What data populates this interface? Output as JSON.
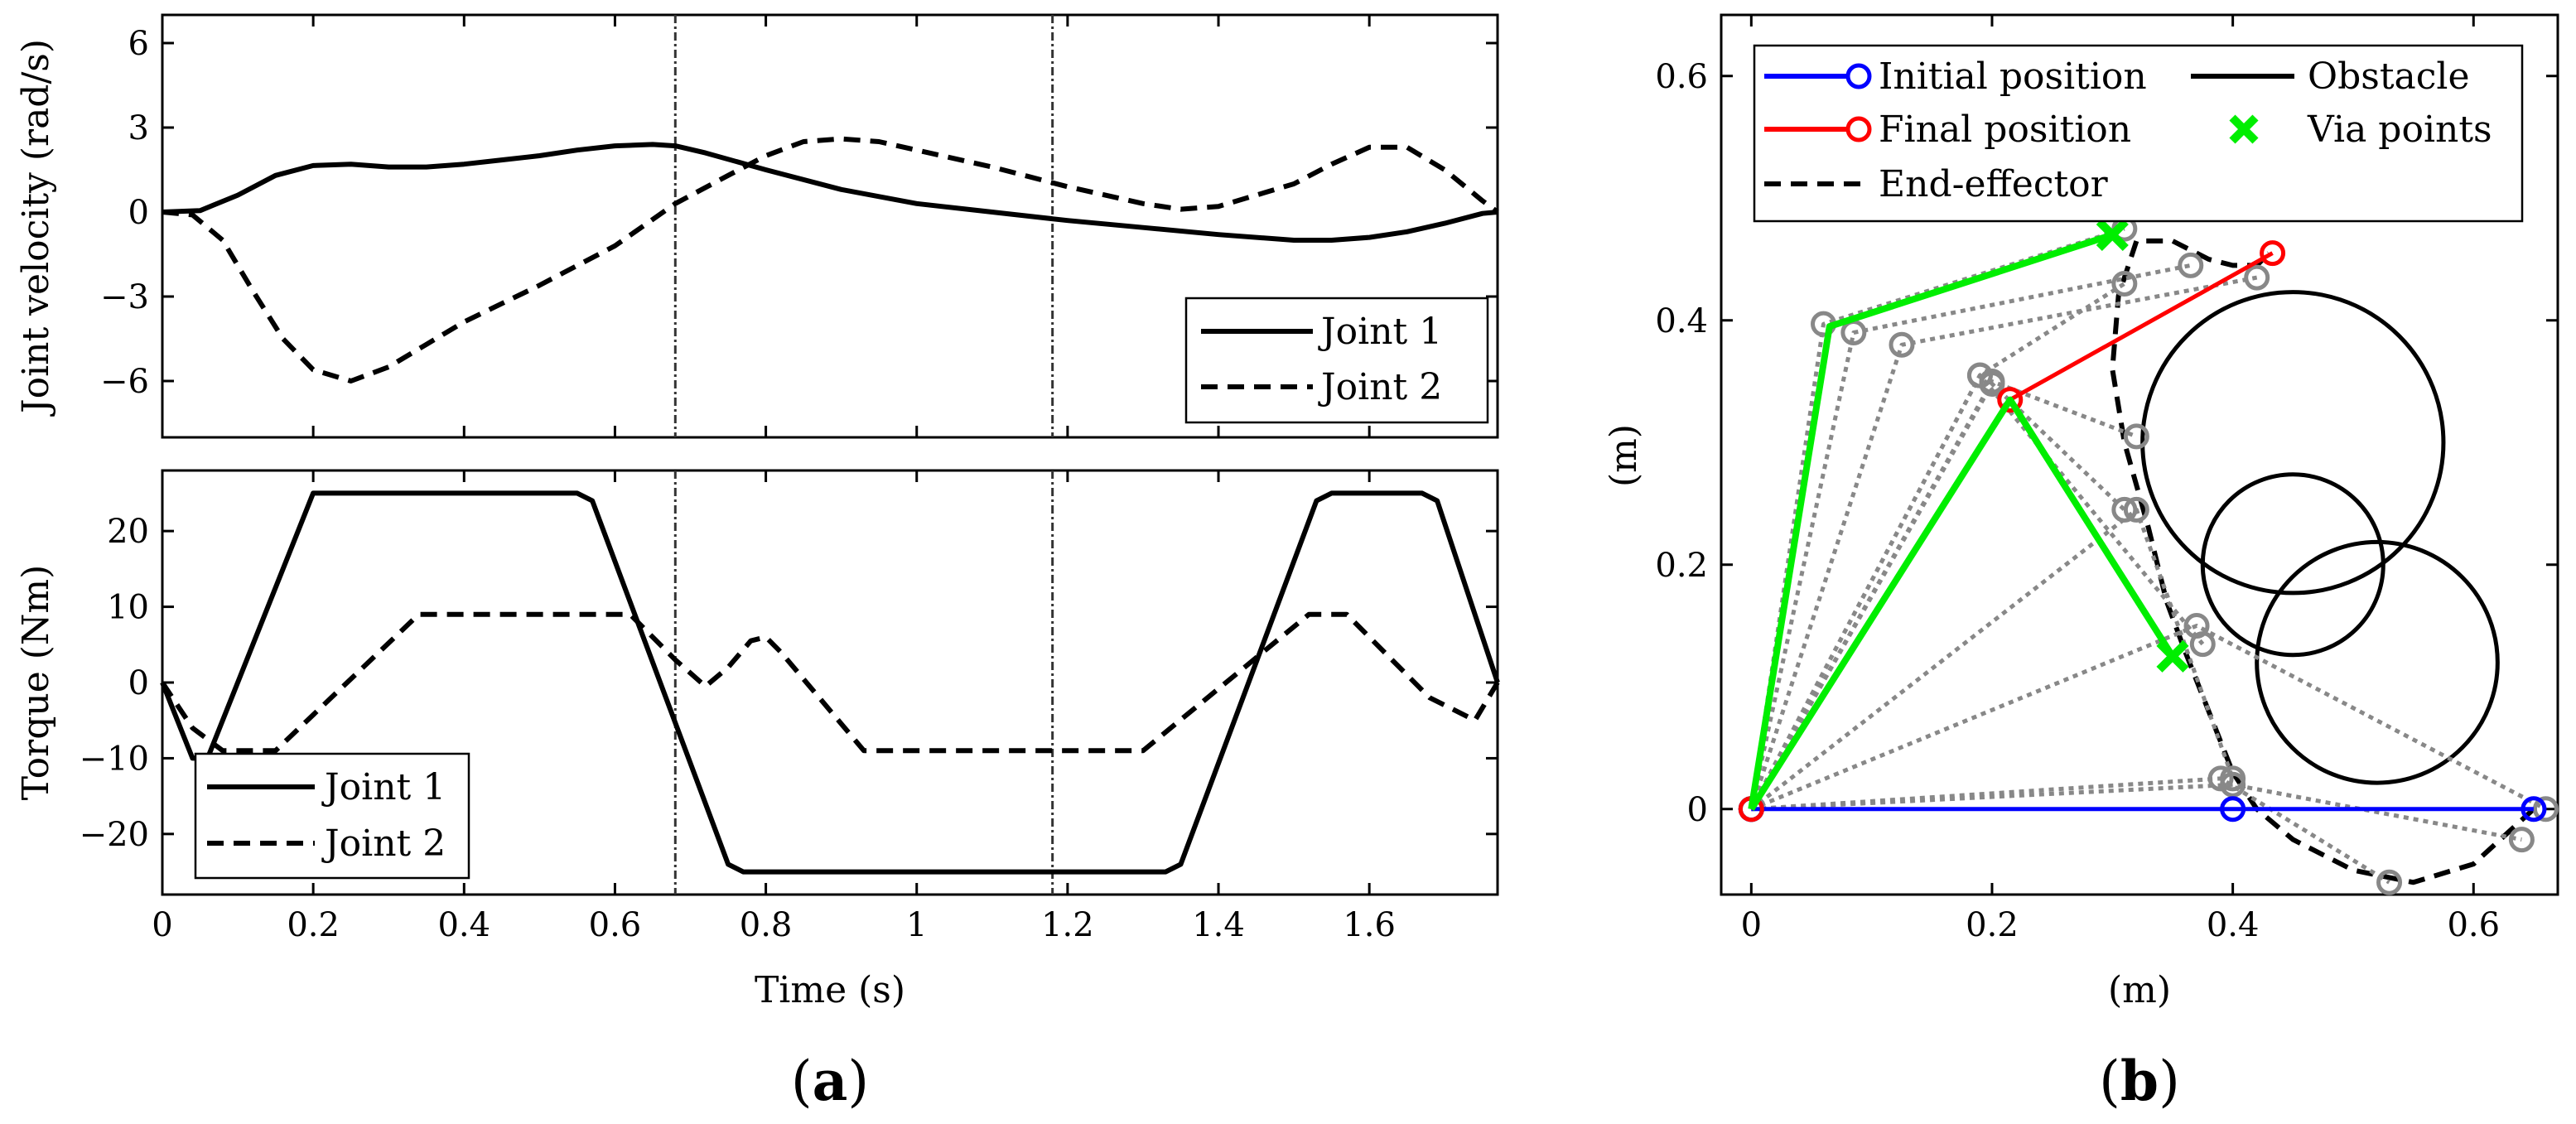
{
  "panel_labels": {
    "a": "a",
    "b": "b"
  },
  "chart_data": [
    {
      "id": "velocity",
      "type": "line",
      "title": "",
      "xlabel": "",
      "ylabel": "Joint velocity (rad/s)",
      "xlim": [
        0,
        1.77
      ],
      "ylim": [
        -8,
        7
      ],
      "yticks": [
        6,
        3,
        0,
        -3,
        -6
      ],
      "ytick_labels": [
        "6",
        "3",
        "0",
        "−3",
        "−6"
      ],
      "vlines": [
        0.68,
        1.18
      ],
      "legend": {
        "position": "bottom-right",
        "entries": [
          "Joint 1",
          "Joint 2"
        ]
      },
      "series": [
        {
          "name": "Joint 1",
          "style": "solid",
          "x": [
            0,
            0.05,
            0.1,
            0.15,
            0.2,
            0.25,
            0.3,
            0.35,
            0.4,
            0.45,
            0.5,
            0.55,
            0.6,
            0.65,
            0.68,
            0.72,
            0.8,
            0.9,
            1.0,
            1.1,
            1.2,
            1.3,
            1.4,
            1.5,
            1.55,
            1.6,
            1.65,
            1.7,
            1.75,
            1.77
          ],
          "y": [
            0,
            0.05,
            0.6,
            1.3,
            1.65,
            1.7,
            1.6,
            1.6,
            1.7,
            1.85,
            2.0,
            2.2,
            2.35,
            2.4,
            2.35,
            2.1,
            1.5,
            0.8,
            0.3,
            0.0,
            -0.3,
            -0.55,
            -0.8,
            -1.0,
            -1.0,
            -0.9,
            -0.7,
            -0.4,
            -0.05,
            0
          ]
        },
        {
          "name": "Joint 2",
          "style": "dashed",
          "x": [
            0,
            0.04,
            0.08,
            0.12,
            0.16,
            0.2,
            0.25,
            0.3,
            0.35,
            0.4,
            0.5,
            0.6,
            0.68,
            0.75,
            0.8,
            0.85,
            0.9,
            0.95,
            1.0,
            1.1,
            1.2,
            1.3,
            1.35,
            1.4,
            1.5,
            1.55,
            1.6,
            1.65,
            1.7,
            1.75,
            1.77
          ],
          "y": [
            0,
            -0.1,
            -1.0,
            -2.8,
            -4.5,
            -5.6,
            -6.0,
            -5.5,
            -4.7,
            -3.9,
            -2.6,
            -1.2,
            0.3,
            1.3,
            2.0,
            2.5,
            2.6,
            2.5,
            2.2,
            1.6,
            0.9,
            0.3,
            0.1,
            0.2,
            1.0,
            1.7,
            2.3,
            2.3,
            1.5,
            0.4,
            0
          ]
        }
      ]
    },
    {
      "id": "torque",
      "type": "line",
      "title": "",
      "xlabel": "Time (s)",
      "ylabel": "Torque (Nm)",
      "xlim": [
        0,
        1.77
      ],
      "ylim": [
        -28,
        28
      ],
      "xticks": [
        0,
        0.2,
        0.4,
        0.6,
        0.8,
        1,
        1.2,
        1.4,
        1.6
      ],
      "xtick_labels": [
        "0",
        "0.2",
        "0.4",
        "0.6",
        "0.8",
        "1",
        "1.2",
        "1.4",
        "1.6"
      ],
      "yticks": [
        20,
        10,
        0,
        -10,
        -20
      ],
      "ytick_labels": [
        "20",
        "10",
        "0",
        "−10",
        "−20"
      ],
      "vlines": [
        0.68,
        1.18
      ],
      "legend": {
        "position": "bottom-left",
        "entries": [
          "Joint 1",
          "Joint 2"
        ]
      },
      "series": [
        {
          "name": "Joint 1",
          "style": "solid",
          "x": [
            0,
            0.04,
            0.06,
            0.2,
            0.55,
            0.57,
            0.75,
            0.77,
            1.33,
            1.35,
            1.53,
            1.55,
            1.67,
            1.69,
            1.77
          ],
          "y": [
            0,
            -10,
            -10,
            25,
            25,
            24,
            -24,
            -25,
            -25,
            -24,
            24,
            25,
            25,
            24,
            0
          ]
        },
        {
          "name": "Joint 2",
          "style": "dashed",
          "x": [
            0,
            0.04,
            0.08,
            0.15,
            0.34,
            0.62,
            0.68,
            0.72,
            0.75,
            0.78,
            0.8,
            0.82,
            0.93,
            1.3,
            1.52,
            1.57,
            1.68,
            1.74,
            1.77
          ],
          "y": [
            0,
            -6,
            -9,
            -9,
            9,
            9,
            3,
            -0.5,
            2,
            5.5,
            6,
            4,
            -9,
            -9,
            9,
            9,
            -2,
            -5,
            0
          ]
        }
      ]
    },
    {
      "id": "workspace",
      "type": "line",
      "title": "",
      "xlabel": "(m)",
      "ylabel": "(m)",
      "xlim": [
        -0.025,
        0.67
      ],
      "ylim": [
        -0.07,
        0.65
      ],
      "xticks": [
        0,
        0.2,
        0.4,
        0.6
      ],
      "xtick_labels": [
        "0",
        "0.2",
        "0.4",
        "0.6"
      ],
      "yticks": [
        0,
        0.2,
        0.4,
        0.6
      ],
      "ytick_labels": [
        "0",
        "0.2",
        "0.4",
        "0.6"
      ],
      "legend": {
        "position": "top",
        "entries": [
          "Initial position",
          "Final position",
          "End-effector",
          "Obstacle",
          "Via points"
        ]
      },
      "obstacles": [
        {
          "cx": 0.45,
          "cy": 0.3,
          "r": 0.125
        },
        {
          "cx": 0.45,
          "cy": 0.2,
          "r": 0.075
        },
        {
          "cx": 0.52,
          "cy": 0.12,
          "r": 0.1
        }
      ],
      "end_effector": {
        "x": [
          0.65,
          0.6,
          0.55,
          0.5,
          0.45,
          0.42,
          0.4,
          0.38,
          0.36,
          0.345,
          0.33,
          0.31,
          0.3,
          0.305,
          0.32,
          0.35,
          0.38,
          0.4,
          0.42,
          0.43
        ],
        "y": [
          0.0,
          -0.045,
          -0.06,
          -0.05,
          -0.025,
          0.0,
          0.03,
          0.08,
          0.13,
          0.17,
          0.23,
          0.3,
          0.36,
          0.42,
          0.465,
          0.465,
          0.45,
          0.445,
          0.445,
          0.455
        ]
      },
      "initial_config": {
        "x": [
          0,
          0.4,
          0.65
        ],
        "y": [
          0,
          0,
          0
        ]
      },
      "final_config": {
        "x": [
          0,
          0.215,
          0.433
        ],
        "y": [
          0,
          0.335,
          0.455
        ]
      },
      "via_configs": [
        {
          "x": [
            0,
            0.065,
            0.3
          ],
          "y": [
            0,
            0.395,
            0.47
          ]
        },
        {
          "x": [
            0,
            0.215,
            0.35
          ],
          "y": [
            0,
            0.335,
            0.125
          ]
        }
      ],
      "intermediate_configs": [
        {
          "x": [
            0,
            0.06,
            0.31
          ],
          "y": [
            0,
            0.397,
            0.475
          ]
        },
        {
          "x": [
            0,
            0.085,
            0.365
          ],
          "y": [
            0,
            0.39,
            0.445
          ]
        },
        {
          "x": [
            0,
            0.125,
            0.42
          ],
          "y": [
            0,
            0.38,
            0.435
          ]
        },
        {
          "x": [
            0,
            0.19,
            0.31
          ],
          "y": [
            0,
            0.355,
            0.43
          ]
        },
        {
          "x": [
            0,
            0.2,
            0.32
          ],
          "y": [
            0,
            0.35,
            0.305
          ]
        },
        {
          "x": [
            0,
            0.2,
            0.31
          ],
          "y": [
            0,
            0.348,
            0.245
          ]
        },
        {
          "x": [
            0,
            0.19,
            0.375
          ],
          "y": [
            0,
            0.355,
            0.135
          ]
        },
        {
          "x": [
            0,
            0.32,
            0.4
          ],
          "y": [
            0,
            0.245,
            0.025
          ]
        },
        {
          "x": [
            0,
            0.39,
            0.53
          ],
          "y": [
            0,
            0.025,
            -0.06
          ]
        },
        {
          "x": [
            0,
            0.4,
            0.64
          ],
          "y": [
            0,
            0.02,
            -0.025
          ]
        },
        {
          "x": [
            0,
            0.37,
            0.66
          ],
          "y": [
            0,
            0.15,
            0.0
          ]
        }
      ],
      "colors": {
        "initial": "#0000ff",
        "final": "#ff0000",
        "via": "#00ee00",
        "intermediate": "#888888",
        "obstacle": "#000000",
        "end_effector": "#000000"
      }
    }
  ]
}
